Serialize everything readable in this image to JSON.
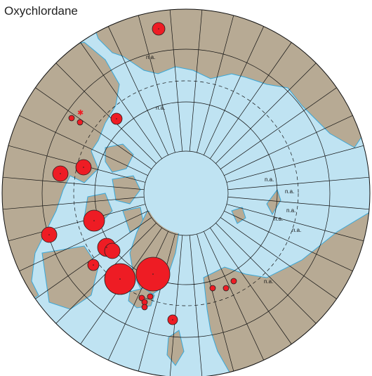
{
  "title": "Oxychlordane",
  "not_available_label": "n.a.",
  "colors": {
    "ocean": "#bfe3f2",
    "land": "#b7aa94",
    "coast": "#3aa8d8",
    "marker": "#ee1c24",
    "grid": "#111111"
  },
  "legend": {},
  "icons": {
    "marker": "red-circle-icon",
    "special_marker": "red-star-icon"
  }
}
